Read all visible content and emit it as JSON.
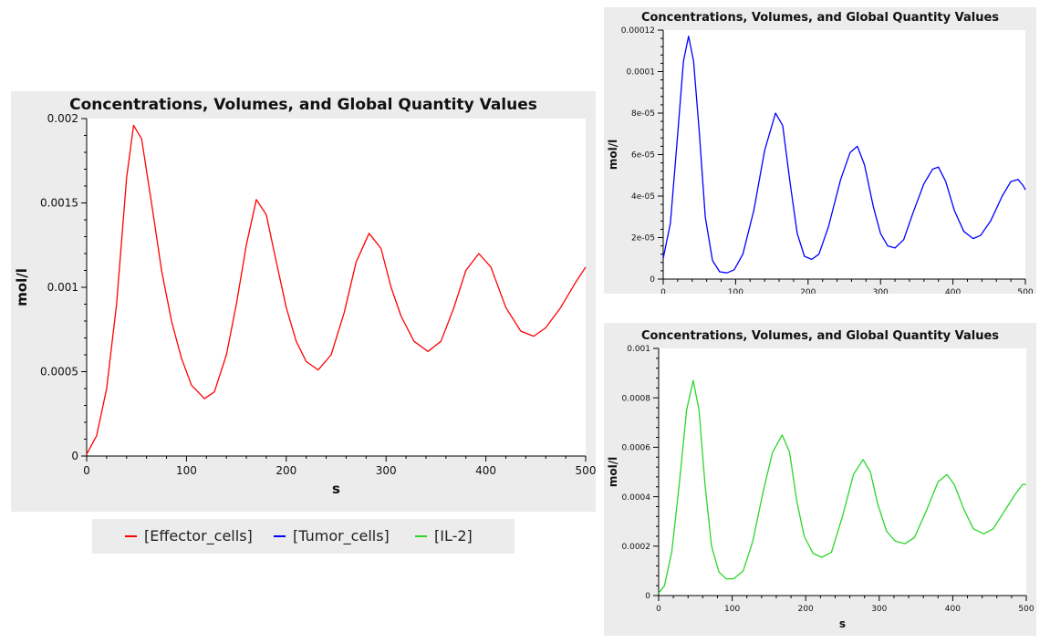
{
  "chart_data": [
    {
      "id": "effector",
      "type": "line",
      "title": "Concentrations, Volumes, and Global Quantity Values",
      "xlabel": "s",
      "ylabel": "mol/l",
      "xlim": [
        0,
        500
      ],
      "ylim": [
        0,
        0.002
      ],
      "xticks": [
        0,
        100,
        200,
        300,
        400,
        500
      ],
      "xtick_labels": [
        "0",
        "100",
        "200",
        "300",
        "400",
        "500"
      ],
      "yticks": [
        0,
        0.0005,
        0.001,
        0.0015,
        0.002
      ],
      "ytick_labels": [
        "0",
        "0.0005",
        "0.001",
        "0.0015",
        "0.002"
      ],
      "series": [
        {
          "name": "[Effector_cells]",
          "color": "#ff0000",
          "points": [
            [
              0,
              1e-05
            ],
            [
              10,
              0.00012
            ],
            [
              20,
              0.0004
            ],
            [
              30,
              0.0009
            ],
            [
              40,
              0.00165
            ],
            [
              47,
              0.00196
            ],
            [
              55,
              0.00188
            ],
            [
              65,
              0.0015
            ],
            [
              75,
              0.0011
            ],
            [
              85,
              0.0008
            ],
            [
              95,
              0.00058
            ],
            [
              105,
              0.00042
            ],
            [
              118,
              0.00034
            ],
            [
              128,
              0.00038
            ],
            [
              140,
              0.0006
            ],
            [
              150,
              0.0009
            ],
            [
              160,
              0.00125
            ],
            [
              170,
              0.00152
            ],
            [
              180,
              0.00143
            ],
            [
              190,
              0.00115
            ],
            [
              200,
              0.00088
            ],
            [
              210,
              0.00068
            ],
            [
              220,
              0.00056
            ],
            [
              232,
              0.00051
            ],
            [
              245,
              0.0006
            ],
            [
              258,
              0.00085
            ],
            [
              270,
              0.00115
            ],
            [
              283,
              0.00132
            ],
            [
              295,
              0.00123
            ],
            [
              305,
              0.001
            ],
            [
              315,
              0.00083
            ],
            [
              328,
              0.00068
            ],
            [
              342,
              0.00062
            ],
            [
              355,
              0.00068
            ],
            [
              368,
              0.00088
            ],
            [
              380,
              0.0011
            ],
            [
              393,
              0.0012
            ],
            [
              405,
              0.00112
            ],
            [
              420,
              0.00088
            ],
            [
              435,
              0.00074
            ],
            [
              448,
              0.00071
            ],
            [
              460,
              0.00076
            ],
            [
              475,
              0.00088
            ],
            [
              490,
              0.00103
            ],
            [
              500,
              0.00112
            ]
          ]
        }
      ]
    },
    {
      "id": "tumor",
      "type": "line",
      "title": "Concentrations, Volumes, and Global Quantity Values",
      "xlabel": "s",
      "ylabel": "mol/l",
      "xlim": [
        0,
        500
      ],
      "ylim": [
        0,
        0.00012
      ],
      "xticks": [
        0,
        100,
        200,
        300,
        400,
        500
      ],
      "xtick_labels": [
        "0",
        "100",
        "200",
        "300",
        "400",
        "500"
      ],
      "yticks": [
        0,
        2e-05,
        4e-05,
        6e-05,
        8e-05,
        0.0001,
        0.00012
      ],
      "ytick_labels": [
        "0",
        "2e-05",
        "4e-05",
        "6e-05",
        "8e-05",
        "0.0001",
        "0.00012"
      ],
      "series": [
        {
          "name": "[Tumor_cells]",
          "color": "#0000ff",
          "points": [
            [
              0,
              1e-05
            ],
            [
              10,
              2.7e-05
            ],
            [
              20,
              7e-05
            ],
            [
              28,
              0.000105
            ],
            [
              35,
              0.000117
            ],
            [
              42,
              0.000105
            ],
            [
              50,
              7e-05
            ],
            [
              58,
              3e-05
            ],
            [
              68,
              9e-06
            ],
            [
              78,
              3.5e-06
            ],
            [
              88,
              3e-06
            ],
            [
              98,
              4.5e-06
            ],
            [
              110,
              1.2e-05
            ],
            [
              125,
              3.3e-05
            ],
            [
              140,
              6.2e-05
            ],
            [
              155,
              8e-05
            ],
            [
              165,
              7.4e-05
            ],
            [
              175,
              4.7e-05
            ],
            [
              185,
              2.2e-05
            ],
            [
              195,
              1.1e-05
            ],
            [
              205,
              9.5e-06
            ],
            [
              215,
              1.2e-05
            ],
            [
              228,
              2.5e-05
            ],
            [
              245,
              4.8e-05
            ],
            [
              258,
              6.1e-05
            ],
            [
              268,
              6.4e-05
            ],
            [
              278,
              5.5e-05
            ],
            [
              290,
              3.5e-05
            ],
            [
              300,
              2.2e-05
            ],
            [
              310,
              1.6e-05
            ],
            [
              320,
              1.5e-05
            ],
            [
              332,
              1.9e-05
            ],
            [
              345,
              3.2e-05
            ],
            [
              360,
              4.6e-05
            ],
            [
              372,
              5.3e-05
            ],
            [
              380,
              5.4e-05
            ],
            [
              390,
              4.7e-05
            ],
            [
              402,
              3.3e-05
            ],
            [
              415,
              2.3e-05
            ],
            [
              428,
              1.95e-05
            ],
            [
              438,
              2.1e-05
            ],
            [
              452,
              2.8e-05
            ],
            [
              468,
              4e-05
            ],
            [
              480,
              4.7e-05
            ],
            [
              490,
              4.8e-05
            ],
            [
              497,
              4.5e-05
            ],
            [
              500,
              4.3e-05
            ]
          ]
        }
      ]
    },
    {
      "id": "il2",
      "type": "line",
      "title": "Concentrations, Volumes, and Global Quantity Values",
      "xlabel": "s",
      "ylabel": "mol/l",
      "xlim": [
        0,
        500
      ],
      "ylim": [
        0,
        0.001
      ],
      "xticks": [
        0,
        100,
        200,
        300,
        400,
        500
      ],
      "xtick_labels": [
        "0",
        "100",
        "200",
        "300",
        "400",
        "500"
      ],
      "yticks": [
        0,
        0.0002,
        0.0004,
        0.0006,
        0.0008,
        0.001
      ],
      "ytick_labels": [
        "0",
        "0.0002",
        "0.0004",
        "0.0006",
        "0.0008",
        "0.001"
      ],
      "series": [
        {
          "name": "[IL-2]",
          "color": "#2bd62b",
          "points": [
            [
              0,
              1e-05
            ],
            [
              8,
              4e-05
            ],
            [
              18,
              0.00018
            ],
            [
              28,
              0.00045
            ],
            [
              38,
              0.00075
            ],
            [
              47,
              0.00087
            ],
            [
              55,
              0.00075
            ],
            [
              63,
              0.00045
            ],
            [
              72,
              0.0002
            ],
            [
              82,
              9.5e-05
            ],
            [
              92,
              6.8e-05
            ],
            [
              102,
              6.8e-05
            ],
            [
              115,
              0.0001
            ],
            [
              128,
              0.00022
            ],
            [
              142,
              0.00042
            ],
            [
              155,
              0.00058
            ],
            [
              168,
              0.00065
            ],
            [
              178,
              0.00058
            ],
            [
              188,
              0.00038
            ],
            [
              198,
              0.00024
            ],
            [
              210,
              0.00017
            ],
            [
              222,
              0.000155
            ],
            [
              235,
              0.000175
            ],
            [
              250,
              0.00032
            ],
            [
              265,
              0.00049
            ],
            [
              278,
              0.00055
            ],
            [
              288,
              0.0005
            ],
            [
              298,
              0.00037
            ],
            [
              310,
              0.00026
            ],
            [
              322,
              0.00022
            ],
            [
              335,
              0.00021
            ],
            [
              348,
              0.000235
            ],
            [
              365,
              0.00035
            ],
            [
              380,
              0.00046
            ],
            [
              392,
              0.00049
            ],
            [
              402,
              0.00045
            ],
            [
              415,
              0.00035
            ],
            [
              428,
              0.00027
            ],
            [
              442,
              0.00025
            ],
            [
              455,
              0.00027
            ],
            [
              470,
              0.00034
            ],
            [
              485,
              0.00041
            ],
            [
              495,
              0.00045
            ],
            [
              500,
              0.00045
            ]
          ]
        }
      ]
    }
  ],
  "legend": {
    "items": [
      {
        "label": "[Effector_cells]",
        "color": "#ff0000"
      },
      {
        "label": "[Tumor_cells]",
        "color": "#0000ff"
      },
      {
        "label": "[IL-2]",
        "color": "#2bd62b"
      }
    ]
  }
}
